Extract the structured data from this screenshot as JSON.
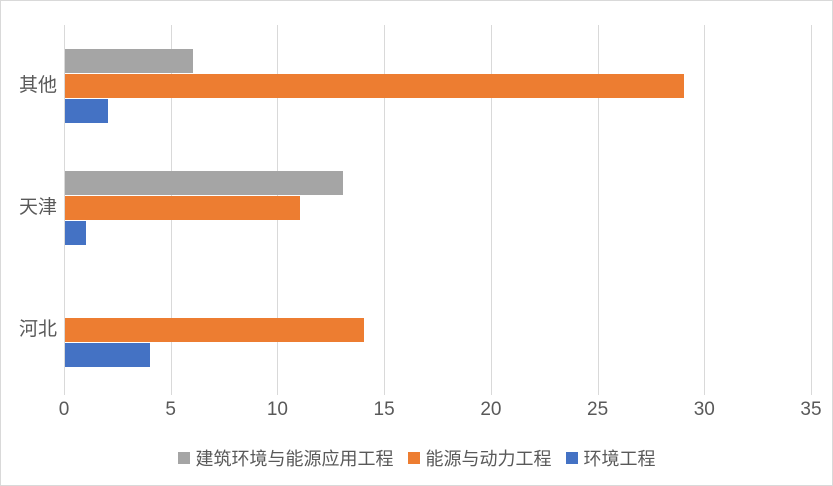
{
  "chart_data": {
    "type": "bar",
    "orientation": "horizontal",
    "title": "",
    "xlabel": "",
    "ylabel": "",
    "categories": [
      "其他",
      "天津",
      "河北"
    ],
    "series": [
      {
        "name": "建筑环境与能源应用工程",
        "color": "#A5A5A5",
        "values": [
          6,
          13,
          0
        ]
      },
      {
        "name": "能源与动力工程",
        "color": "#ED7D31",
        "values": [
          29,
          11,
          14
        ]
      },
      {
        "name": "环境工程",
        "color": "#4472C4",
        "values": [
          2,
          1,
          4
        ]
      }
    ],
    "xlim": [
      0,
      35
    ],
    "xticks": [
      0,
      5,
      10,
      15,
      20,
      25,
      30,
      35
    ],
    "grid": "vertical",
    "gridline_color": "#d9d9d9",
    "text_color": "#595959",
    "legend_position": "bottom"
  }
}
